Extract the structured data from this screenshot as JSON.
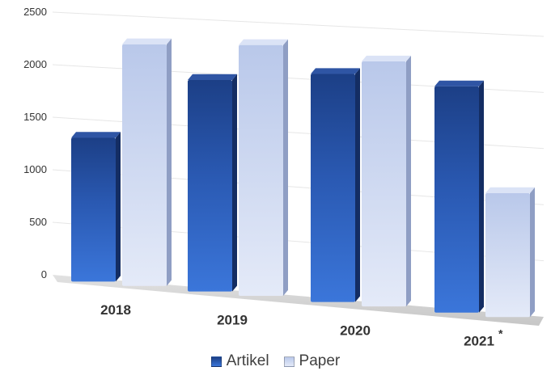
{
  "chart_data": {
    "type": "bar",
    "categories": [
      "2018",
      "2019",
      "2020",
      "2021"
    ],
    "category_note": "*",
    "series": [
      {
        "name": "Artikel",
        "values": [
          1330,
          1940,
          2060,
          2010
        ],
        "color": "#2f5fb8"
      },
      {
        "name": "Paper",
        "values": [
          2240,
          2290,
          2200,
          1080
        ],
        "color": "#c7d3ef"
      }
    ],
    "ylim": [
      0,
      2500
    ],
    "yticks": [
      "0",
      "500",
      "1000",
      "1500",
      "2000",
      "2500"
    ],
    "grid": true,
    "style": "3d",
    "legend_position": "bottom"
  }
}
